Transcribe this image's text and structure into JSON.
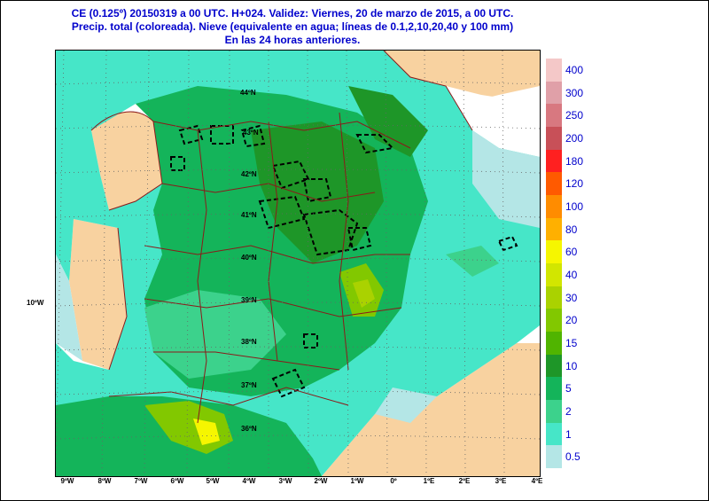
{
  "header": {
    "line1": "CE (0.125º) 20150319 a 00 UTC.  H+024. Validez: Viernes, 20 de marzo de 2015,  a  00 UTC.",
    "line2": "Precip. total (coloreada). Nieve (equivalente en agua; líneas de 0.1,2,10,20,40 y 100 mm)",
    "line3": "En las 24 horas anteriores."
  },
  "map": {
    "lon_labels": [
      "9ºW",
      "8ºW",
      "7ºW",
      "6ºW",
      "5ºW",
      "4ºW",
      "3ºW",
      "2ºW",
      "1ºW",
      "0º",
      "1ºE",
      "2ºE",
      "3ºE",
      "4ºE"
    ],
    "lat_labels": [
      "44ºN",
      "43ºN",
      "42ºN",
      "41ºN",
      "40ºN",
      "39ºN",
      "38ºN",
      "37ºN",
      "36ºN"
    ],
    "side_label": "10ºW"
  },
  "colorbar": {
    "levels": [
      "400",
      "300",
      "250",
      "200",
      "180",
      "120",
      "100",
      "80",
      "60",
      "40",
      "30",
      "20",
      "15",
      "10",
      "5",
      "2",
      "1",
      "0.5"
    ],
    "colors": [
      "#f4c8c8",
      "#e0a0a8",
      "#d87880",
      "#c85058",
      "#ff2020",
      "#ff5a00",
      "#ff8c00",
      "#ffb000",
      "#f6f600",
      "#d2e600",
      "#aad200",
      "#82c800",
      "#50b400",
      "#1e9628",
      "#14b45a",
      "#3cd28c",
      "#46e6c8",
      "#b4e6e6"
    ]
  },
  "colors": {
    "land": "#f8d2a0",
    "sea": "#ffffff",
    "light_precip": "#b4e6e6",
    "title": "#0000cc",
    "boundary": "#8b1a1a"
  }
}
